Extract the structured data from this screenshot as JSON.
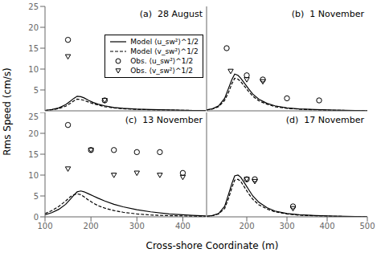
{
  "x_label": "Cross-shore Coordinate (m)",
  "y_label": "Rms Speed (cm/s)",
  "chart_data": [
    {
      "type": "line",
      "title": "(a)  28 August",
      "xlim": [
        100,
        450
      ],
      "ylim": [
        0,
        25
      ],
      "xticks": [
        100,
        200,
        300,
        400
      ],
      "yticks": [
        0,
        5,
        10,
        15,
        20,
        25
      ],
      "grid": false,
      "tick_labels": "y",
      "legend": "right",
      "series": [
        {
          "name": "Model ⟨u_sw²⟩^1/2",
          "type": "line",
          "line_style": "solid",
          "color": "#000000",
          "x": [
            100,
            115,
            130,
            145,
            155,
            163,
            170,
            178,
            185,
            195,
            205,
            215,
            230,
            250,
            270,
            300,
            330,
            370,
            420,
            450
          ],
          "values": [
            0.1,
            0.3,
            0.7,
            1.5,
            2.3,
            3.0,
            3.5,
            3.4,
            3.1,
            2.5,
            2.0,
            1.6,
            1.2,
            0.8,
            0.6,
            0.4,
            0.3,
            0.2,
            0.1,
            0.08
          ]
        },
        {
          "name": "Model ⟨v_sw²⟩^1/2",
          "type": "line",
          "line_style": "dashed",
          "color": "#000000",
          "x": [
            100,
            115,
            130,
            145,
            155,
            163,
            170,
            178,
            185,
            195,
            205,
            215,
            230,
            250,
            270,
            300,
            330,
            370,
            420,
            450
          ],
          "values": [
            0.1,
            0.25,
            0.55,
            1.1,
            1.8,
            2.4,
            2.8,
            2.7,
            2.5,
            2.1,
            1.7,
            1.4,
            1.0,
            0.7,
            0.5,
            0.35,
            0.25,
            0.18,
            0.1,
            0.08
          ]
        },
        {
          "name": "Obs. ⟨u_sw²⟩^1/2",
          "type": "scatter",
          "marker": "circle",
          "color": "#000000",
          "x": [
            150,
            230
          ],
          "values": [
            17,
            2.5
          ]
        },
        {
          "name": "Obs. ⟨v_sw²⟩^1/2",
          "type": "scatter",
          "marker": "triangle_down",
          "color": "#000000",
          "x": [
            150,
            230
          ],
          "values": [
            13,
            2.5
          ]
        }
      ]
    },
    {
      "type": "line",
      "title": "(b)  1 November",
      "xlim": [
        100,
        500
      ],
      "ylim": [
        0,
        25
      ],
      "xticks": [
        100,
        200,
        300,
        400,
        500
      ],
      "yticks": [
        0,
        5,
        10,
        15,
        20,
        25
      ],
      "grid": false,
      "tick_labels": false,
      "series": [
        {
          "type": "line",
          "line_style": "solid",
          "color": "#000000",
          "x": [
            100,
            115,
            130,
            145,
            155,
            163,
            170,
            178,
            185,
            195,
            205,
            215,
            230,
            250,
            270,
            300,
            330,
            370,
            420,
            470,
            500
          ],
          "values": [
            0.2,
            0.5,
            1.2,
            3.0,
            5.5,
            7.5,
            8.8,
            8.5,
            7.8,
            6.5,
            5.2,
            4.0,
            2.8,
            1.8,
            1.2,
            0.7,
            0.45,
            0.3,
            0.15,
            0.08,
            0.05
          ]
        },
        {
          "type": "line",
          "line_style": "dashed",
          "color": "#000000",
          "x": [
            100,
            115,
            130,
            145,
            155,
            163,
            170,
            178,
            185,
            195,
            205,
            215,
            230,
            250,
            270,
            300,
            330,
            370,
            420,
            470,
            500
          ],
          "values": [
            0.2,
            0.45,
            1.0,
            2.5,
            4.5,
            6.5,
            7.8,
            7.6,
            7.0,
            5.8,
            4.6,
            3.5,
            2.4,
            1.6,
            1.0,
            0.6,
            0.4,
            0.25,
            0.12,
            0.07,
            0.04
          ]
        },
        {
          "type": "scatter",
          "marker": "circle",
          "color": "#000000",
          "x": [
            150,
            200,
            240,
            300,
            380
          ],
          "values": [
            15,
            8.5,
            7.5,
            3.0,
            2.5
          ]
        },
        {
          "type": "scatter",
          "marker": "triangle_down",
          "color": "#000000",
          "x": [
            160,
            200,
            240
          ],
          "values": [
            9.5,
            7.5,
            7.0
          ]
        }
      ]
    },
    {
      "type": "line",
      "title": "(c)  13 November",
      "xlim": [
        100,
        450
      ],
      "ylim": [
        0,
        25
      ],
      "xticks": [
        100,
        200,
        300,
        400
      ],
      "yticks": [
        0,
        5,
        10,
        15,
        20,
        25
      ],
      "grid": false,
      "tick_labels": true,
      "series": [
        {
          "type": "line",
          "line_style": "solid",
          "color": "#000000",
          "x": [
            100,
            115,
            130,
            145,
            155,
            163,
            170,
            178,
            185,
            195,
            205,
            215,
            230,
            250,
            270,
            300,
            330,
            370,
            420,
            450
          ],
          "values": [
            0.5,
            1.0,
            1.8,
            3.0,
            4.2,
            5.2,
            6.0,
            6.2,
            6.0,
            5.5,
            5.0,
            4.5,
            3.8,
            3.0,
            2.4,
            1.7,
            1.2,
            0.7,
            0.35,
            0.2
          ]
        },
        {
          "type": "line",
          "line_style": "dashed",
          "color": "#000000",
          "x": [
            100,
            115,
            130,
            145,
            155,
            163,
            170,
            178,
            185,
            195,
            205,
            215,
            230,
            250,
            270,
            300,
            330,
            370,
            420,
            450
          ],
          "values": [
            0.8,
            1.5,
            2.5,
            3.8,
            4.8,
            5.3,
            5.5,
            5.3,
            4.8,
            4.0,
            3.3,
            2.7,
            2.1,
            1.5,
            1.1,
            0.7,
            0.45,
            0.28,
            0.15,
            0.1
          ]
        },
        {
          "type": "scatter",
          "marker": "circle",
          "color": "#000000",
          "x": [
            150,
            200,
            250,
            300,
            350,
            400
          ],
          "values": [
            22,
            16,
            16,
            15.5,
            15.5,
            10.5
          ]
        },
        {
          "type": "scatter",
          "marker": "triangle_down",
          "color": "#000000",
          "x": [
            150,
            200,
            250,
            300,
            350,
            400
          ],
          "values": [
            11.5,
            16,
            10,
            10.5,
            10,
            9.5
          ]
        }
      ]
    },
    {
      "type": "line",
      "title": "(d)  17 November",
      "xlim": [
        100,
        500
      ],
      "ylim": [
        0,
        25
      ],
      "xticks": [
        100,
        200,
        300,
        400,
        500
      ],
      "yticks": [
        0,
        5,
        10,
        15,
        20,
        25
      ],
      "grid": false,
      "tick_labels": "x",
      "series": [
        {
          "type": "line",
          "line_style": "solid",
          "color": "#000000",
          "x": [
            100,
            115,
            130,
            145,
            155,
            163,
            170,
            178,
            185,
            195,
            205,
            215,
            230,
            250,
            270,
            300,
            330,
            370,
            420,
            470,
            500
          ],
          "values": [
            0.1,
            0.3,
            0.8,
            2.5,
            5.5,
            8.0,
            9.8,
            10.0,
            9.5,
            8.0,
            6.5,
            5.0,
            3.5,
            2.2,
            1.4,
            0.8,
            0.5,
            0.3,
            0.15,
            0.08,
            0.05
          ]
        },
        {
          "type": "line",
          "line_style": "dashed",
          "color": "#000000",
          "x": [
            100,
            115,
            130,
            145,
            155,
            163,
            170,
            178,
            185,
            195,
            205,
            215,
            230,
            250,
            270,
            300,
            330,
            370,
            420,
            470,
            500
          ],
          "values": [
            0.1,
            0.3,
            0.7,
            2.0,
            4.5,
            7.0,
            8.8,
            9.0,
            8.5,
            7.0,
            5.5,
            4.2,
            2.9,
            1.9,
            1.2,
            0.7,
            0.4,
            0.25,
            0.12,
            0.07,
            0.04
          ]
        },
        {
          "type": "scatter",
          "marker": "circle",
          "color": "#000000",
          "x": [
            200,
            220,
            315
          ],
          "values": [
            9.0,
            9.0,
            2.5
          ]
        },
        {
          "type": "scatter",
          "marker": "triangle_down",
          "color": "#000000",
          "x": [
            200,
            220,
            315
          ],
          "values": [
            9.0,
            8.5,
            2.0
          ]
        }
      ]
    }
  ]
}
